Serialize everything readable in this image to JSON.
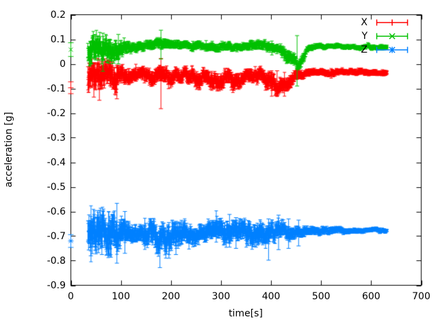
{
  "chart_data": {
    "type": "scatter",
    "subtype": "errorbars",
    "title": "",
    "xlabel": "time[s]",
    "ylabel": "acceleration [g]",
    "xlim": [
      0,
      700
    ],
    "ylim": [
      -0.9,
      0.2
    ],
    "grid": false,
    "legend_position": "top-right",
    "x_ticks": [
      0,
      100,
      200,
      300,
      400,
      500,
      600,
      700
    ],
    "x_tick_labels": [
      "0",
      "100",
      "200",
      "300",
      "400",
      "500",
      "600",
      "700"
    ],
    "y_ticks": [
      0.2,
      0.1,
      0,
      -0.1,
      -0.2,
      -0.3,
      -0.4,
      -0.5,
      -0.6,
      -0.7,
      -0.8,
      -0.9
    ],
    "y_tick_labels": [
      "0.2",
      "0.1",
      "0",
      "-0.1",
      "-0.2",
      "-0.3",
      "-0.4",
      "-0.5",
      "-0.6",
      "-0.7",
      "-0.8",
      "-0.9"
    ],
    "series": [
      {
        "name": "X",
        "color": "#ff0000",
        "marker": "plus",
        "seed": 1234,
        "initial_point": {
          "t": 0,
          "value": -0.097,
          "err": 0.024
        },
        "t_range": [
          34,
          632
        ],
        "band_envelope": [
          [
            34,
            -0.05,
            0.05
          ],
          [
            45,
            -0.055,
            0.055
          ],
          [
            60,
            -0.06,
            0.055
          ],
          [
            75,
            -0.05,
            0.05
          ],
          [
            90,
            -0.055,
            0.05
          ],
          [
            105,
            -0.042,
            0.032
          ],
          [
            120,
            -0.04,
            0.025
          ],
          [
            140,
            -0.045,
            0.022
          ],
          [
            160,
            -0.05,
            0.028
          ],
          [
            180,
            -0.06,
            0.032
          ],
          [
            195,
            -0.055,
            0.03
          ],
          [
            215,
            -0.045,
            0.025
          ],
          [
            235,
            -0.05,
            0.028
          ],
          [
            255,
            -0.062,
            0.032
          ],
          [
            270,
            -0.055,
            0.028
          ],
          [
            285,
            -0.068,
            0.032
          ],
          [
            300,
            -0.075,
            0.032
          ],
          [
            312,
            -0.06,
            0.028
          ],
          [
            325,
            -0.072,
            0.032
          ],
          [
            340,
            -0.058,
            0.028
          ],
          [
            360,
            -0.05,
            0.025
          ],
          [
            380,
            -0.047,
            0.028
          ],
          [
            400,
            -0.06,
            0.032
          ],
          [
            412,
            -0.085,
            0.032
          ],
          [
            425,
            -0.082,
            0.028
          ],
          [
            440,
            -0.06,
            0.025
          ],
          [
            455,
            -0.045,
            0.018
          ],
          [
            470,
            -0.038,
            0.014
          ],
          [
            500,
            -0.035,
            0.012
          ],
          [
            560,
            -0.036,
            0.011
          ],
          [
            632,
            -0.035,
            0.011
          ]
        ],
        "outlier_bars": [
          [
            46,
            -0.135,
            0.005
          ],
          [
            57,
            -0.148,
            0.0
          ],
          [
            92,
            -0.142,
            -0.005
          ],
          [
            180,
            -0.182,
            0.022
          ],
          [
            412,
            -0.13,
            -0.028
          ]
        ]
      },
      {
        "name": "Y",
        "color": "#00c000",
        "marker": "times",
        "seed": 99,
        "initial_point": {
          "t": 0,
          "value": 0.058,
          "err": 0.028
        },
        "t_range": [
          34,
          632
        ],
        "band_envelope": [
          [
            34,
            0.045,
            0.05
          ],
          [
            45,
            0.06,
            0.05
          ],
          [
            60,
            0.055,
            0.045
          ],
          [
            75,
            0.05,
            0.045
          ],
          [
            90,
            0.06,
            0.035
          ],
          [
            105,
            0.065,
            0.025
          ],
          [
            125,
            0.07,
            0.018
          ],
          [
            150,
            0.072,
            0.016
          ],
          [
            170,
            0.088,
            0.018
          ],
          [
            185,
            0.082,
            0.02
          ],
          [
            200,
            0.072,
            0.016
          ],
          [
            225,
            0.075,
            0.014
          ],
          [
            250,
            0.072,
            0.014
          ],
          [
            275,
            0.07,
            0.014
          ],
          [
            300,
            0.067,
            0.016
          ],
          [
            325,
            0.068,
            0.014
          ],
          [
            350,
            0.072,
            0.014
          ],
          [
            370,
            0.075,
            0.016
          ],
          [
            395,
            0.07,
            0.016
          ],
          [
            415,
            0.066,
            0.018
          ],
          [
            432,
            0.04,
            0.025
          ],
          [
            448,
            0.005,
            0.022
          ],
          [
            456,
            -0.002,
            0.018
          ],
          [
            465,
            0.03,
            0.018
          ],
          [
            472,
            0.06,
            0.012
          ],
          [
            490,
            0.068,
            0.01
          ],
          [
            530,
            0.07,
            0.009
          ],
          [
            580,
            0.07,
            0.009
          ],
          [
            632,
            0.069,
            0.009
          ]
        ],
        "outlier_bars": [
          [
            64,
            -0.03,
            0.125
          ],
          [
            95,
            0.0,
            0.12
          ],
          [
            180,
            0.02,
            0.137
          ],
          [
            452,
            -0.09,
            0.115
          ]
        ]
      },
      {
        "name": "Z",
        "color": "#0080ff",
        "marker": "asterisk",
        "seed": 2024,
        "initial_point": {
          "t": 0,
          "value": -0.72,
          "err": 0.026
        },
        "t_range": [
          34,
          632
        ],
        "band_envelope": [
          [
            34,
            -0.7,
            0.065
          ],
          [
            45,
            -0.7,
            0.078
          ],
          [
            55,
            -0.695,
            0.08
          ],
          [
            70,
            -0.7,
            0.075
          ],
          [
            85,
            -0.7,
            0.08
          ],
          [
            95,
            -0.695,
            0.06
          ],
          [
            110,
            -0.69,
            0.04
          ],
          [
            125,
            -0.688,
            0.032
          ],
          [
            140,
            -0.687,
            0.03
          ],
          [
            155,
            -0.69,
            0.045
          ],
          [
            170,
            -0.695,
            0.055
          ],
          [
            185,
            -0.693,
            0.055
          ],
          [
            200,
            -0.69,
            0.05
          ],
          [
            215,
            -0.69,
            0.048
          ],
          [
            230,
            -0.688,
            0.04
          ],
          [
            245,
            -0.686,
            0.036
          ],
          [
            262,
            -0.686,
            0.034
          ],
          [
            280,
            -0.686,
            0.036
          ],
          [
            295,
            -0.687,
            0.04
          ],
          [
            310,
            -0.683,
            0.045
          ],
          [
            325,
            -0.686,
            0.038
          ],
          [
            340,
            -0.682,
            0.04
          ],
          [
            355,
            -0.681,
            0.042
          ],
          [
            370,
            -0.682,
            0.045
          ],
          [
            385,
            -0.685,
            0.042
          ],
          [
            400,
            -0.682,
            0.036
          ],
          [
            415,
            -0.681,
            0.032
          ],
          [
            430,
            -0.68,
            0.027
          ],
          [
            450,
            -0.68,
            0.022
          ],
          [
            470,
            -0.679,
            0.018
          ],
          [
            495,
            -0.678,
            0.015
          ],
          [
            520,
            -0.678,
            0.013
          ],
          [
            550,
            -0.677,
            0.011
          ],
          [
            580,
            -0.677,
            0.009
          ],
          [
            610,
            -0.676,
            0.008
          ],
          [
            632,
            -0.676,
            0.008
          ]
        ],
        "outlier_bars": [
          [
            40,
            -0.78,
            -0.62
          ],
          [
            62,
            -0.775,
            -0.615
          ],
          [
            92,
            -0.81,
            -0.567
          ],
          [
            108,
            -0.77,
            -0.6
          ],
          [
            178,
            -0.828,
            -0.66
          ],
          [
            196,
            -0.79,
            -0.645
          ],
          [
            210,
            -0.775,
            -0.64
          ],
          [
            317,
            -0.745,
            -0.612
          ],
          [
            330,
            -0.75,
            -0.625
          ],
          [
            395,
            -0.798,
            -0.63
          ],
          [
            415,
            -0.755,
            -0.615
          ],
          [
            435,
            -0.75,
            -0.63
          ],
          [
            455,
            -0.74,
            -0.635
          ]
        ]
      }
    ]
  },
  "legend": {
    "entries": [
      "X",
      "Y",
      "Z"
    ]
  },
  "colors": {
    "axis": "#000000",
    "background": "#ffffff",
    "series_x": "#ff0000",
    "series_y": "#00c000",
    "series_z": "#0080ff"
  }
}
